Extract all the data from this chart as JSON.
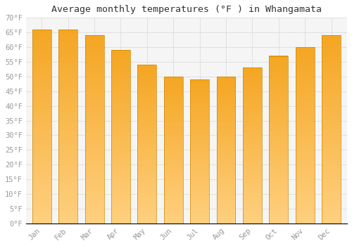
{
  "title": "Average monthly temperatures (°F ) in Whangamata",
  "months": [
    "Jan",
    "Feb",
    "Mar",
    "Apr",
    "May",
    "Jun",
    "Jul",
    "Aug",
    "Sep",
    "Oct",
    "Nov",
    "Dec"
  ],
  "values": [
    66,
    66,
    64,
    59,
    54,
    50,
    49,
    50,
    53,
    57,
    60,
    64
  ],
  "bar_color_top": "#F5A623",
  "bar_color_bottom": "#FFD080",
  "bar_edge_color": "#CC8800",
  "ylim": [
    0,
    70
  ],
  "yticks": [
    0,
    5,
    10,
    15,
    20,
    25,
    30,
    35,
    40,
    45,
    50,
    55,
    60,
    65,
    70
  ],
  "ylabel_suffix": "°F",
  "background_color": "#ffffff",
  "plot_bg_color": "#f5f5f5",
  "grid_color": "#dddddd",
  "title_fontsize": 9.5,
  "tick_fontsize": 7.5,
  "font_family": "monospace",
  "tick_color": "#999999",
  "title_color": "#333333"
}
